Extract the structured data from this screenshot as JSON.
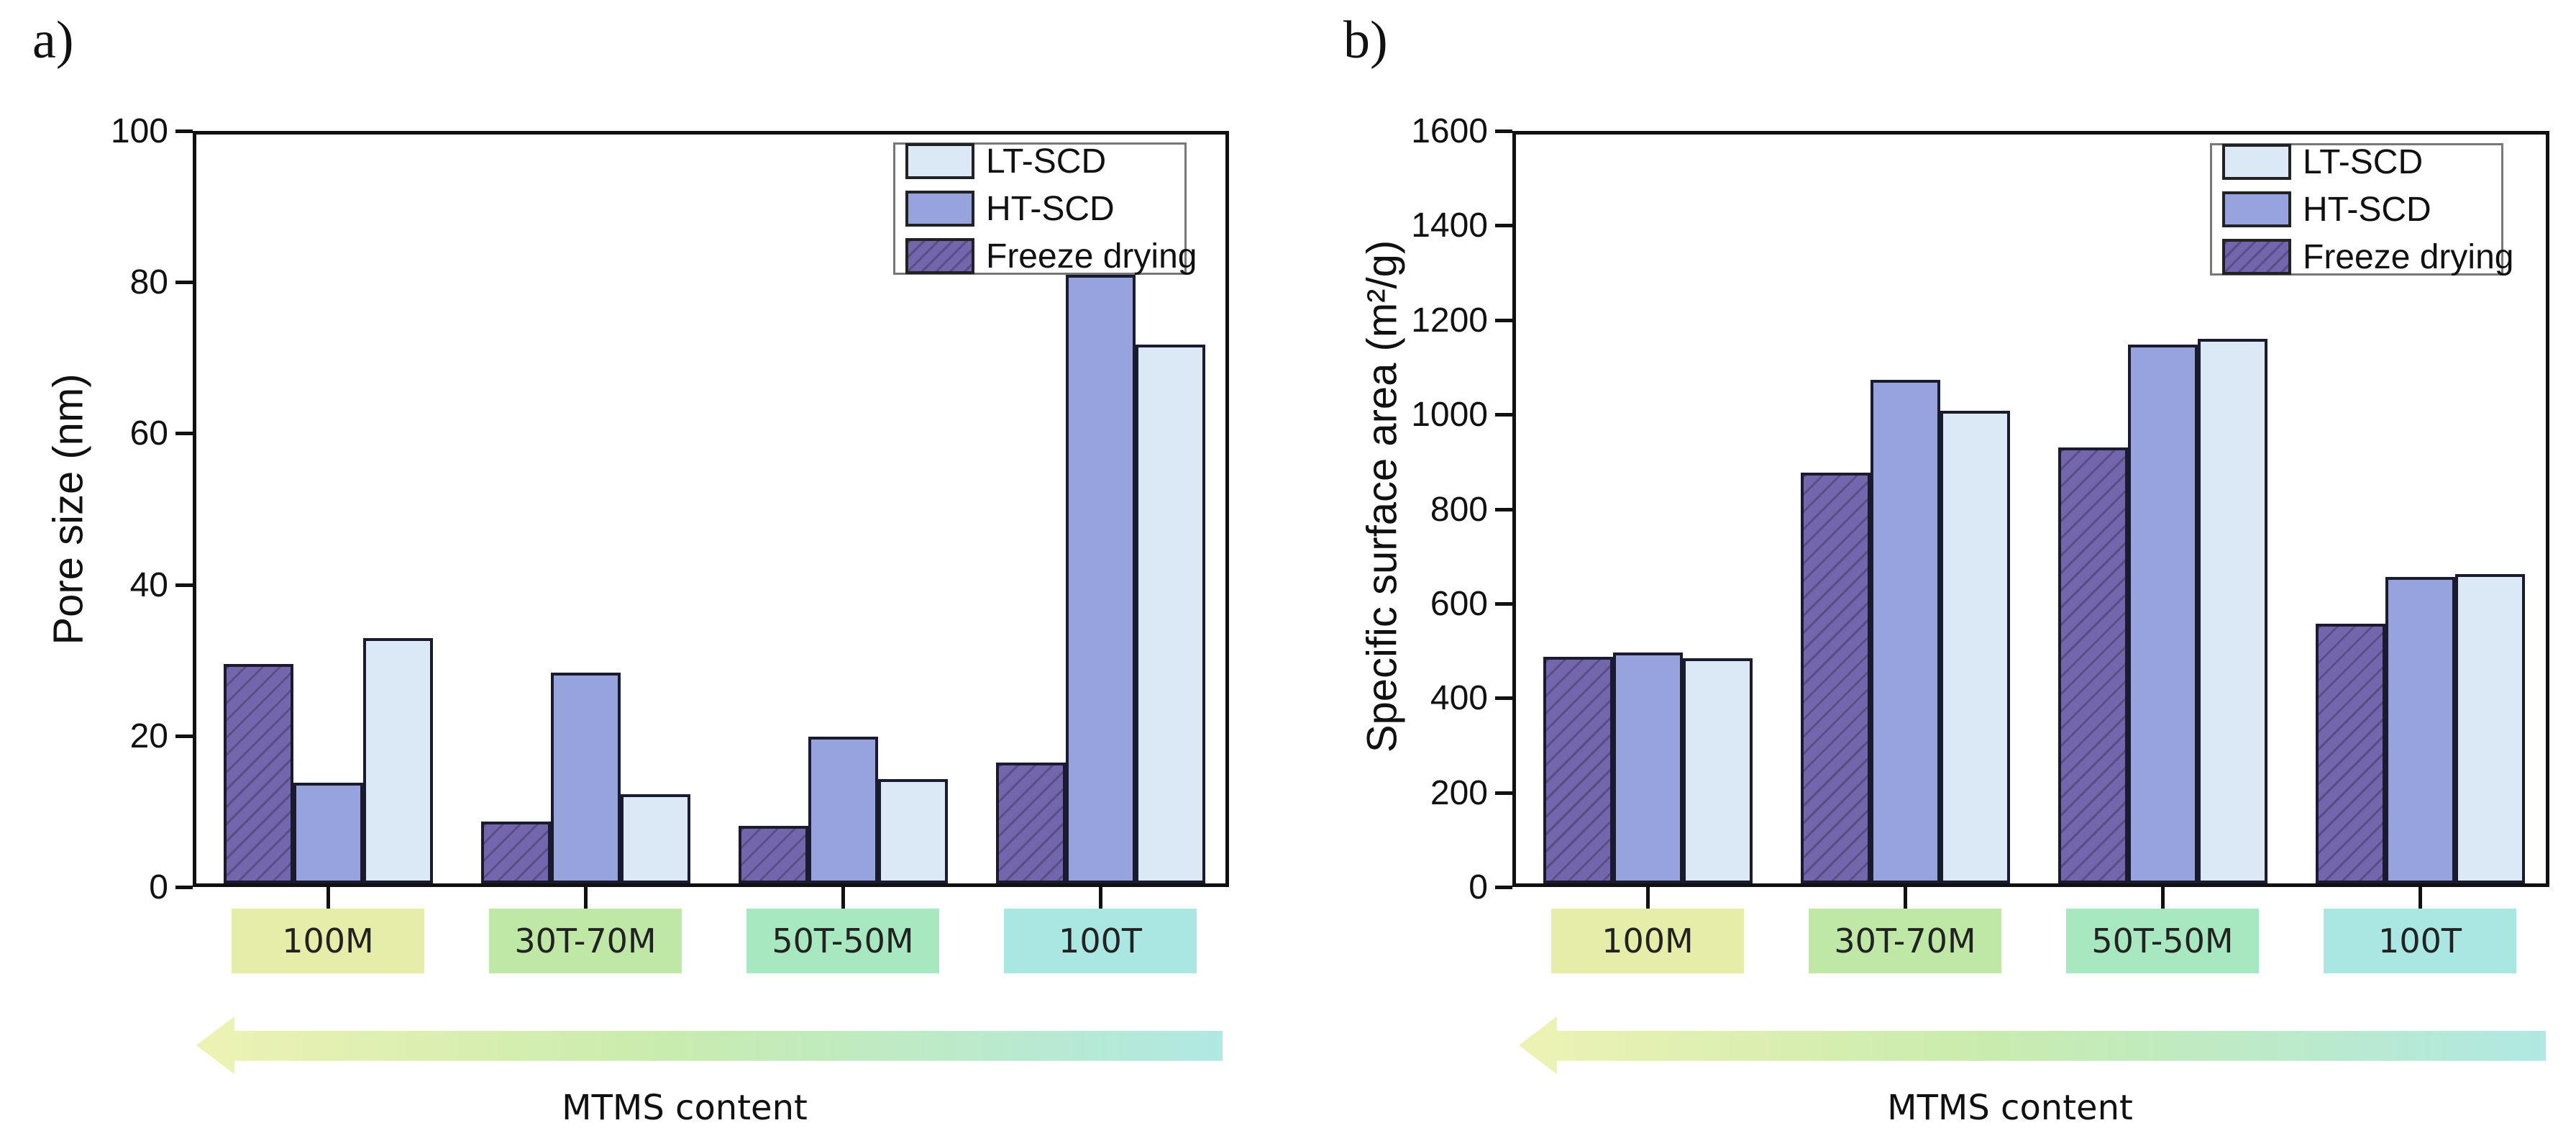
{
  "figure": {
    "panels": [
      {
        "panel_label": "a)",
        "ylabel": "Pore size (nm)",
        "arrow_label": "MTMS content"
      },
      {
        "panel_label": "b)",
        "ylabel": "Specific surface area (m²/g)",
        "arrow_label": "MTMS content"
      }
    ]
  },
  "legend": {
    "entries": [
      "LT-SCD",
      "HT-SCD",
      "Freeze drying"
    ]
  },
  "colors": {
    "lt_scd": "#dbe9f6",
    "ht_scd": "#97a3dc",
    "freeze_drying": "#7466ac",
    "bar_edge": "#1b1b2f",
    "category_boxes": [
      "#e5eda9",
      "#bfe7a5",
      "#a8e8c0",
      "#aae7e2"
    ],
    "arrow_gradient": [
      "#edf2b4",
      "#c9ecae",
      "#b0e8e2"
    ]
  },
  "chart_data": [
    {
      "type": "bar",
      "title": "a)",
      "ylabel": "Pore size (nm)",
      "xlabel": "MTMS content",
      "categories": [
        "100M",
        "30T-70M",
        "50T-50M",
        "100T"
      ],
      "series": [
        {
          "name": "Freeze drying",
          "values": [
            29,
            8.2,
            7.6,
            16
          ]
        },
        {
          "name": "HT-SCD",
          "values": [
            13.3,
            27.9,
            19.4,
            80.5
          ]
        },
        {
          "name": "LT-SCD",
          "values": [
            32.4,
            11.8,
            13.8,
            71.3
          ]
        }
      ],
      "ylim": [
        0,
        100
      ],
      "ytick_step": 20,
      "yticks": [
        0,
        20,
        40,
        60,
        80,
        100
      ],
      "legend_position": "top-right",
      "grid": false
    },
    {
      "type": "bar",
      "title": "b)",
      "ylabel": "Specific surface area (m²/g)",
      "xlabel": "MTMS content",
      "categories": [
        "100M",
        "30T-70M",
        "50T-50M",
        "100T"
      ],
      "series": [
        {
          "name": "Freeze drying",
          "values": [
            480,
            870,
            922,
            550
          ]
        },
        {
          "name": "HT-SCD",
          "values": [
            488,
            1065,
            1140,
            648
          ]
        },
        {
          "name": "LT-SCD",
          "values": [
            477,
            1000,
            1152,
            654
          ]
        }
      ],
      "ylim": [
        0,
        1600
      ],
      "ytick_step": 200,
      "yticks": [
        0,
        200,
        400,
        600,
        800,
        1000,
        1200,
        1400,
        1600
      ],
      "legend_position": "top-right",
      "grid": false
    }
  ]
}
